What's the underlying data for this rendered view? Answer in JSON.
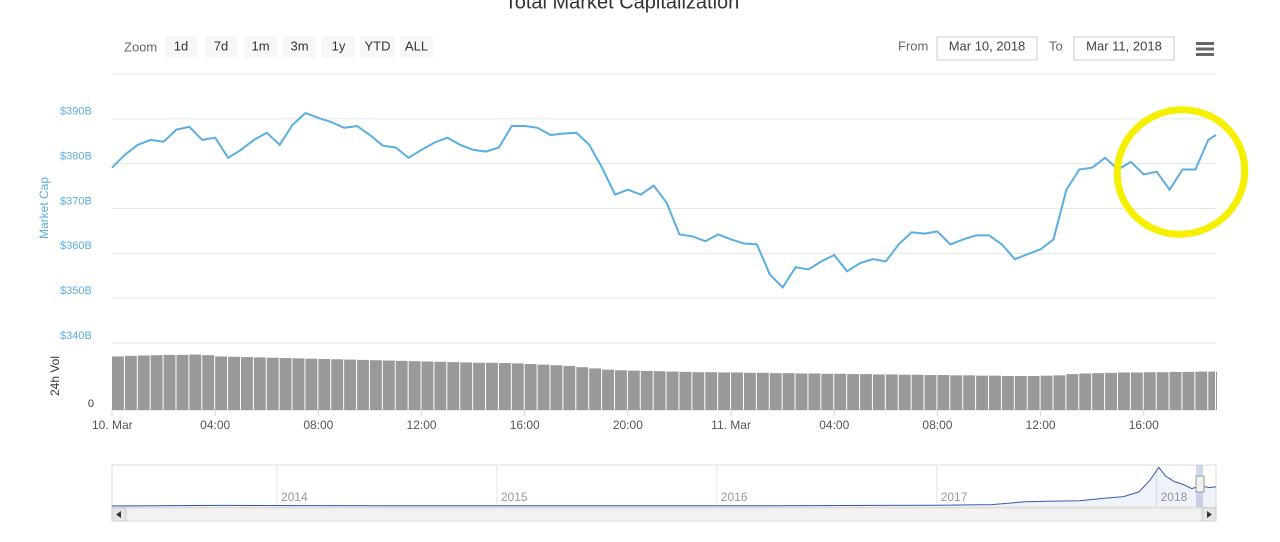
{
  "toolbar": {
    "zoom_label": "Zoom",
    "buttons": [
      "1d",
      "7d",
      "1m",
      "3m",
      "1y",
      "YTD",
      "ALL"
    ],
    "from_label": "From",
    "from_date": "Mar 10, 2018",
    "to_label": "To",
    "to_date": "Mar 11, 2018"
  },
  "chart_data": {
    "type": "line",
    "title": "Total Market Capitalization",
    "y_label": "Market Cap",
    "y2_label": "24h Vol",
    "x": [
      0,
      0.5,
      1,
      1.5,
      2,
      2.5,
      3,
      3.5,
      4,
      4.5,
      5,
      5.5,
      6,
      6.5,
      7,
      7.5,
      8,
      8.5,
      9,
      9.5,
      10,
      10.5,
      11,
      11.5,
      12,
      12.5,
      13,
      13.5,
      14,
      14.5,
      15,
      15.5,
      16,
      16.5,
      17,
      17.5,
      18,
      18.5,
      19,
      19.5,
      20,
      20.5,
      21,
      21.5,
      22,
      22.5,
      23,
      23.5,
      24,
      24.5,
      25,
      25.5,
      26,
      26.5,
      27,
      27.5,
      28,
      28.5,
      29,
      29.5,
      30,
      30.5,
      31,
      31.5,
      32,
      32.5,
      33,
      33.5,
      34,
      34.5,
      35,
      35.5,
      36,
      36.5,
      37,
      37.5,
      38,
      38.5,
      39,
      39.5,
      40,
      40.5,
      41,
      41.5,
      42,
      42.5,
      42.8
    ],
    "xlim": [
      0,
      42.8
    ],
    "xticks": [
      {
        "value": 0,
        "label": "10. Mar"
      },
      {
        "value": 4,
        "label": "04:00"
      },
      {
        "value": 8,
        "label": "08:00"
      },
      {
        "value": 12,
        "label": "12:00"
      },
      {
        "value": 16,
        "label": "16:00"
      },
      {
        "value": 20,
        "label": "20:00"
      },
      {
        "value": 24,
        "label": "11. Mar"
      },
      {
        "value": 28,
        "label": "04:00"
      },
      {
        "value": 32,
        "label": "08:00"
      },
      {
        "value": 36,
        "label": "12:00"
      },
      {
        "value": 40,
        "label": "16:00"
      }
    ],
    "ylim": [
      340,
      400
    ],
    "yticks": [
      {
        "value": 340,
        "label": "$340B"
      },
      {
        "value": 350,
        "label": "$350B"
      },
      {
        "value": 360,
        "label": "$360B"
      },
      {
        "value": 370,
        "label": "$370B"
      },
      {
        "value": 380,
        "label": "$380B"
      },
      {
        "value": 390,
        "label": "$390B"
      }
    ],
    "y2lim": [
      0,
      20
    ],
    "y2ticks": [
      0
    ],
    "grid": true,
    "series": [
      {
        "color": "#5aaee0",
        "values": [
          379.1,
          382.0,
          384.2,
          385.3,
          384.9,
          387.6,
          388.2,
          385.3,
          385.8,
          381.3,
          383.1,
          385.3,
          386.9,
          384.2,
          388.7,
          391.3,
          390.2,
          389.3,
          388.0,
          388.4,
          386.4,
          384.0,
          383.6,
          381.3,
          383.1,
          384.7,
          385.8,
          384.2,
          383.1,
          382.7,
          383.6,
          388.4,
          388.4,
          388.0,
          386.4,
          386.7,
          386.9,
          384.2,
          379.1,
          373.1,
          374.2,
          373.1,
          375.1,
          371.3,
          364.2,
          363.8,
          362.7,
          364.2,
          363.1,
          362.2,
          362.0,
          355.3,
          352.4,
          356.9,
          356.4,
          358.2,
          359.6,
          356.0,
          357.8,
          358.7,
          358.2,
          362.0,
          364.7,
          364.4,
          364.9,
          362.0,
          363.1,
          364.0,
          364.0,
          362.0,
          358.7,
          359.8,
          360.9,
          363.1,
          374.2,
          378.7,
          379.1,
          381.3,
          378.7,
          380.4,
          377.6,
          378.2,
          374.2,
          378.7,
          378.7,
          385.3,
          386.4
        ]
      },
      {
        "type": "bar",
        "axis": "y2",
        "color": "#999999",
        "values": [
          17.0,
          17.2,
          17.3,
          17.4,
          17.5,
          17.5,
          17.6,
          17.4,
          17.0,
          16.9,
          16.8,
          16.7,
          16.6,
          16.5,
          16.4,
          16.3,
          16.2,
          16.1,
          16.0,
          15.9,
          15.8,
          15.7,
          15.6,
          15.5,
          15.4,
          15.3,
          15.2,
          15.1,
          15.0,
          15.0,
          14.9,
          14.8,
          14.6,
          14.4,
          14.2,
          14.0,
          13.6,
          13.2,
          12.8,
          12.6,
          12.5,
          12.4,
          12.3,
          12.2,
          12.1,
          12.0,
          12.0,
          11.9,
          11.9,
          11.8,
          11.8,
          11.7,
          11.7,
          11.6,
          11.6,
          11.5,
          11.5,
          11.4,
          11.4,
          11.3,
          11.3,
          11.2,
          11.2,
          11.1,
          11.1,
          11.0,
          11.0,
          10.9,
          10.9,
          10.8,
          10.8,
          10.8,
          10.9,
          11.0,
          11.4,
          11.6,
          11.7,
          11.8,
          11.9,
          11.9,
          12.0,
          12.0,
          12.1,
          12.1,
          12.2,
          12.2,
          12.2
        ]
      }
    ],
    "navigator": {
      "color": "#335cad",
      "x": [
        2013.25,
        2013.75,
        2014.25,
        2014.75,
        2015.25,
        2015.75,
        2016.25,
        2016.75,
        2017.0,
        2017.25,
        2017.4,
        2017.5,
        2017.65,
        2017.75,
        2017.85,
        2017.92,
        2017.97,
        2018.01,
        2018.04,
        2018.08,
        2018.12,
        2018.16,
        2018.2,
        2018.24,
        2018.27
      ],
      "values": [
        1.5,
        12,
        8,
        5,
        4,
        4,
        7,
        12,
        18,
        30,
        90,
        100,
        110,
        160,
        200,
        300,
        550,
        820,
        640,
        520,
        460,
        370,
        430,
        390,
        410
      ],
      "xlim": [
        2013.25,
        2018.27
      ],
      "ylim": [
        0,
        850
      ],
      "xticks": [
        2014,
        2015,
        2016,
        2017,
        2018
      ]
    }
  }
}
